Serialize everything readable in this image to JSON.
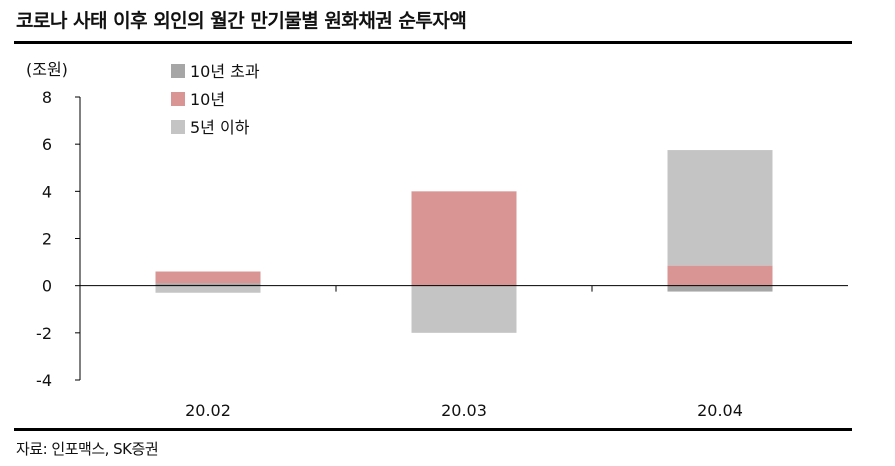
{
  "header": {
    "title": "코로나 사태 이후 외인의 월간 만기물별 원화채권 순투자액"
  },
  "footer": {
    "source": "자료: 인포맥스, SK증권"
  },
  "chart_data": {
    "type": "bar",
    "stacked": true,
    "unit_label": "(조원)",
    "categories": [
      "20.02",
      "20.03",
      "20.04"
    ],
    "series": [
      {
        "name": "10년 초과",
        "color": "#a6a6a6",
        "values": [
          0.1,
          0.0,
          -0.25
        ]
      },
      {
        "name": "10년",
        "color": "#d99594",
        "values": [
          0.5,
          4.0,
          0.85
        ]
      },
      {
        "name": "5년 이하",
        "color": "#c4c4c4",
        "values": [
          -0.3,
          -2.0,
          4.9
        ]
      }
    ],
    "ylim": [
      -4,
      8
    ],
    "yticks": [
      -4,
      -2,
      0,
      2,
      4,
      6,
      8
    ],
    "legend_position": "top-left",
    "grid": false
  }
}
